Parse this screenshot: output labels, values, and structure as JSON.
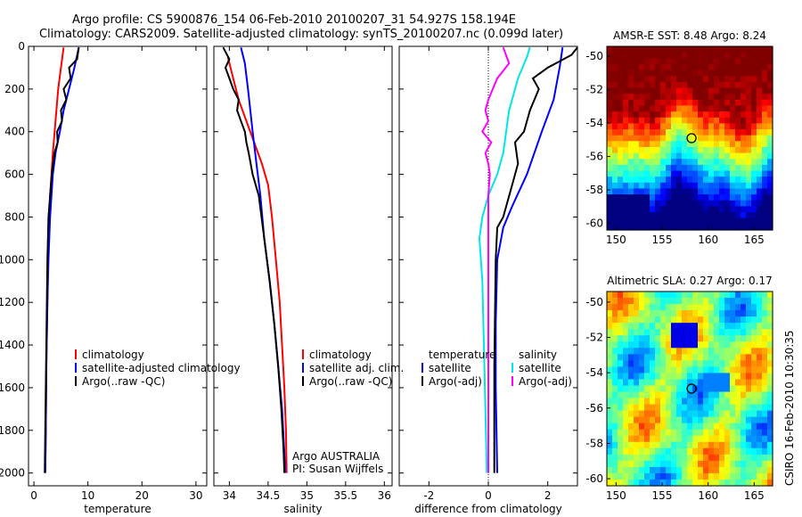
{
  "header": {
    "line1": "Argo profile: CS 5900876_154 06-Feb-2010 20100207_31 54.927S 158.194E",
    "line2": "Climatology: CARS2009. Satellite-adjusted climatology: synTS_20100207.nc (0.099d later)"
  },
  "footer_vertical": "CSIRO 16-Feb-2010 10:30:35",
  "colors": {
    "red": "#ff0000",
    "blue": "#0000ff",
    "black": "#000000",
    "cyan": "#00e5e5",
    "magenta": "#ff00ff"
  },
  "chart_data": [
    {
      "type": "line",
      "id": "temperature",
      "xlabel": "temperature",
      "xlim": [
        -1,
        32
      ],
      "ylim": [
        2060,
        0
      ],
      "xticks": [
        0,
        10,
        20,
        30
      ],
      "xticklabels": [
        "0",
        "10",
        "20",
        "30"
      ],
      "yticks": [
        0,
        200,
        400,
        600,
        800,
        1000,
        1200,
        1400,
        1600,
        1800,
        2000
      ],
      "yticklabels": [
        "0",
        "200",
        "400",
        "600",
        "800",
        "1000",
        "1200",
        "1400",
        "1600",
        "1800",
        "2000"
      ],
      "legend": [
        "climatology",
        "satellite-adjusted climatology",
        "Argo(..raw -QC)"
      ],
      "series": [
        {
          "name": "climatology",
          "color": "red",
          "points": [
            [
              5.5,
              5
            ],
            [
              5.0,
              100
            ],
            [
              4.5,
              200
            ],
            [
              4.0,
              350
            ],
            [
              3.5,
              500
            ],
            [
              3.0,
              700
            ],
            [
              2.7,
              900
            ],
            [
              2.5,
              1200
            ],
            [
              2.3,
              1500
            ],
            [
              2.2,
              1800
            ],
            [
              2.1,
              2000
            ]
          ]
        },
        {
          "name": "satellite-adjusted climatology",
          "color": "blue",
          "points": [
            [
              8.3,
              5
            ],
            [
              7.5,
              100
            ],
            [
              6.5,
              200
            ],
            [
              5.5,
              300
            ],
            [
              4.8,
              400
            ],
            [
              4.0,
              500
            ],
            [
              3.5,
              600
            ],
            [
              3.0,
              800
            ],
            [
              2.7,
              1000
            ],
            [
              2.5,
              1200
            ],
            [
              2.3,
              1500
            ],
            [
              2.2,
              1800
            ],
            [
              2.1,
              2000
            ]
          ]
        },
        {
          "name": "Argo(..raw -QC)",
          "color": "black",
          "points": [
            [
              8.3,
              5
            ],
            [
              8.0,
              60
            ],
            [
              6.5,
              100
            ],
            [
              6.8,
              150
            ],
            [
              5.5,
              200
            ],
            [
              6.0,
              250
            ],
            [
              5.0,
              300
            ],
            [
              5.2,
              350
            ],
            [
              4.3,
              400
            ],
            [
              4.4,
              450
            ],
            [
              3.8,
              500
            ],
            [
              3.3,
              600
            ],
            [
              3.0,
              700
            ],
            [
              2.7,
              800
            ],
            [
              2.5,
              1000
            ],
            [
              2.4,
              1200
            ],
            [
              2.3,
              1400
            ],
            [
              2.2,
              1600
            ],
            [
              2.1,
              1800
            ],
            [
              2.0,
              2000
            ]
          ]
        }
      ]
    },
    {
      "type": "line",
      "id": "salinity",
      "xlabel": "salinity",
      "xlim": [
        33.8,
        36.1
      ],
      "ylim": [
        2060,
        0
      ],
      "xticks": [
        34,
        34.5,
        35,
        35.5,
        36
      ],
      "xticklabels": [
        "34",
        "34.5",
        "35",
        "35.5",
        "36"
      ],
      "yticks": [
        0,
        200,
        400,
        600,
        800,
        1000,
        1200,
        1400,
        1600,
        1800,
        2000
      ],
      "legend": [
        "climatology",
        "satellite adj. clim.",
        "Argo(..raw -QC)"
      ],
      "annotation": [
        "Argo AUSTRALIA",
        "PI: Susan Wijffels"
      ],
      "series": [
        {
          "name": "climatology",
          "color": "red",
          "points": [
            [
              33.98,
              50
            ],
            [
              34.05,
              150
            ],
            [
              34.12,
              250
            ],
            [
              34.22,
              350
            ],
            [
              34.32,
              450
            ],
            [
              34.42,
              550
            ],
            [
              34.5,
              650
            ],
            [
              34.55,
              800
            ],
            [
              34.6,
              1000
            ],
            [
              34.65,
              1200
            ],
            [
              34.68,
              1400
            ],
            [
              34.71,
              1600
            ],
            [
              34.73,
              1800
            ],
            [
              34.74,
              2000
            ]
          ]
        },
        {
          "name": "satellite adj. clim.",
          "color": "blue",
          "points": [
            [
              34.15,
              5
            ],
            [
              34.2,
              80
            ],
            [
              34.24,
              200
            ],
            [
              34.3,
              400
            ],
            [
              34.35,
              550
            ],
            [
              34.4,
              700
            ],
            [
              34.45,
              900
            ],
            [
              34.52,
              1100
            ],
            [
              34.58,
              1300
            ],
            [
              34.63,
              1500
            ],
            [
              34.68,
              1700
            ],
            [
              34.71,
              1900
            ],
            [
              34.72,
              2000
            ]
          ]
        },
        {
          "name": "Argo(..raw -QC)",
          "color": "black",
          "points": [
            [
              33.92,
              5
            ],
            [
              34.0,
              60
            ],
            [
              33.95,
              100
            ],
            [
              34.0,
              150
            ],
            [
              34.05,
              200
            ],
            [
              34.12,
              250
            ],
            [
              34.1,
              300
            ],
            [
              34.15,
              350
            ],
            [
              34.2,
              400
            ],
            [
              34.22,
              450
            ],
            [
              34.25,
              500
            ],
            [
              34.3,
              600
            ],
            [
              34.38,
              700
            ],
            [
              34.45,
              900
            ],
            [
              34.52,
              1100
            ],
            [
              34.58,
              1300
            ],
            [
              34.63,
              1500
            ],
            [
              34.67,
              1700
            ],
            [
              34.7,
              1900
            ],
            [
              34.71,
              2000
            ]
          ]
        }
      ]
    },
    {
      "type": "line",
      "id": "difference",
      "xlabel": "difference from climatology",
      "xlim": [
        -3,
        3
      ],
      "ylim": [
        2060,
        0
      ],
      "xticks": [
        -2,
        0,
        2
      ],
      "xticklabels": [
        "-2",
        "0",
        "2"
      ],
      "yticks": [
        0,
        200,
        400,
        600,
        800,
        1000,
        1200,
        1400,
        1600,
        1800,
        2000
      ],
      "legend_temperature_header": "temperature",
      "legend_temperature": [
        "satellite",
        "Argo(-adj)"
      ],
      "legend_salinity_header": "salinity",
      "legend_salinity": [
        "satellite",
        "Argo(-adj)"
      ],
      "series": [
        {
          "name": "temperature satellite",
          "color": "blue",
          "points": [
            [
              2.5,
              5
            ],
            [
              2.4,
              100
            ],
            [
              2.2,
              250
            ],
            [
              1.8,
              400
            ],
            [
              1.3,
              600
            ],
            [
              0.8,
              750
            ],
            [
              0.5,
              850
            ],
            [
              0.3,
              1000
            ],
            [
              0.25,
              1300
            ],
            [
              0.25,
              1600
            ],
            [
              0.3,
              2000
            ]
          ]
        },
        {
          "name": "temperature Argo(-adj)",
          "color": "black",
          "points": [
            [
              3.0,
              5
            ],
            [
              2.8,
              40
            ],
            [
              2.0,
              100
            ],
            [
              1.5,
              150
            ],
            [
              1.7,
              200
            ],
            [
              1.4,
              300
            ],
            [
              1.2,
              400
            ],
            [
              0.9,
              450
            ],
            [
              1.0,
              550
            ],
            [
              0.8,
              650
            ],
            [
              0.5,
              800
            ],
            [
              0.3,
              850
            ],
            [
              0.25,
              1000
            ],
            [
              0.2,
              1500
            ],
            [
              0.2,
              2000
            ]
          ]
        },
        {
          "name": "salinity satellite",
          "color": "cyan",
          "points": [
            [
              1.4,
              5
            ],
            [
              1.3,
              50
            ],
            [
              1.0,
              150
            ],
            [
              0.7,
              300
            ],
            [
              0.5,
              500
            ],
            [
              0.3,
              600
            ],
            [
              0.0,
              700
            ],
            [
              -0.2,
              800
            ],
            [
              -0.3,
              900
            ],
            [
              -0.2,
              1100
            ],
            [
              -0.15,
              1400
            ],
            [
              -0.1,
              1700
            ],
            [
              -0.05,
              2000
            ]
          ]
        },
        {
          "name": "salinity Argo(-adj)",
          "color": "magenta",
          "points": [
            [
              0.5,
              5
            ],
            [
              0.7,
              80
            ],
            [
              0.3,
              150
            ],
            [
              0.0,
              250
            ],
            [
              -0.1,
              300
            ],
            [
              0.0,
              350
            ],
            [
              -0.2,
              400
            ],
            [
              0.1,
              450
            ],
            [
              -0.1,
              500
            ],
            [
              0.0,
              550
            ],
            [
              0.05,
              600
            ],
            [
              0.0,
              700
            ],
            [
              0.0,
              1000
            ],
            [
              0.0,
              2000
            ]
          ]
        }
      ]
    },
    {
      "type": "heatmap",
      "id": "sst-map",
      "title": "AMSR-E SST: 8.48 Argo: 8.24",
      "xlim": [
        149,
        167
      ],
      "ylim": [
        -60.4,
        -49.4
      ],
      "xticks": [
        150,
        155,
        160,
        165
      ],
      "xticklabels": [
        "150",
        "155",
        "160",
        "165"
      ],
      "yticks": [
        -50,
        -52,
        -54,
        -56,
        -58,
        -60
      ],
      "yticklabels": [
        "-50",
        "-52",
        "-54",
        "-56",
        "-58",
        "-60"
      ],
      "marker": {
        "lon": 158.2,
        "lat": -54.9
      }
    },
    {
      "type": "heatmap",
      "id": "sla-map",
      "title": "Altimetric SLA: 0.27 Argo: 0.17",
      "xlim": [
        149,
        167
      ],
      "ylim": [
        -60.4,
        -49.4
      ],
      "xticks": [
        150,
        155,
        160,
        165
      ],
      "xticklabels": [
        "150",
        "155",
        "160",
        "165"
      ],
      "yticks": [
        -50,
        -52,
        -54,
        -56,
        -58,
        -60
      ],
      "yticklabels": [
        "-50",
        "-52",
        "-54",
        "-56",
        "-58",
        "-60"
      ],
      "marker": {
        "lon": 158.2,
        "lat": -54.9
      }
    }
  ]
}
